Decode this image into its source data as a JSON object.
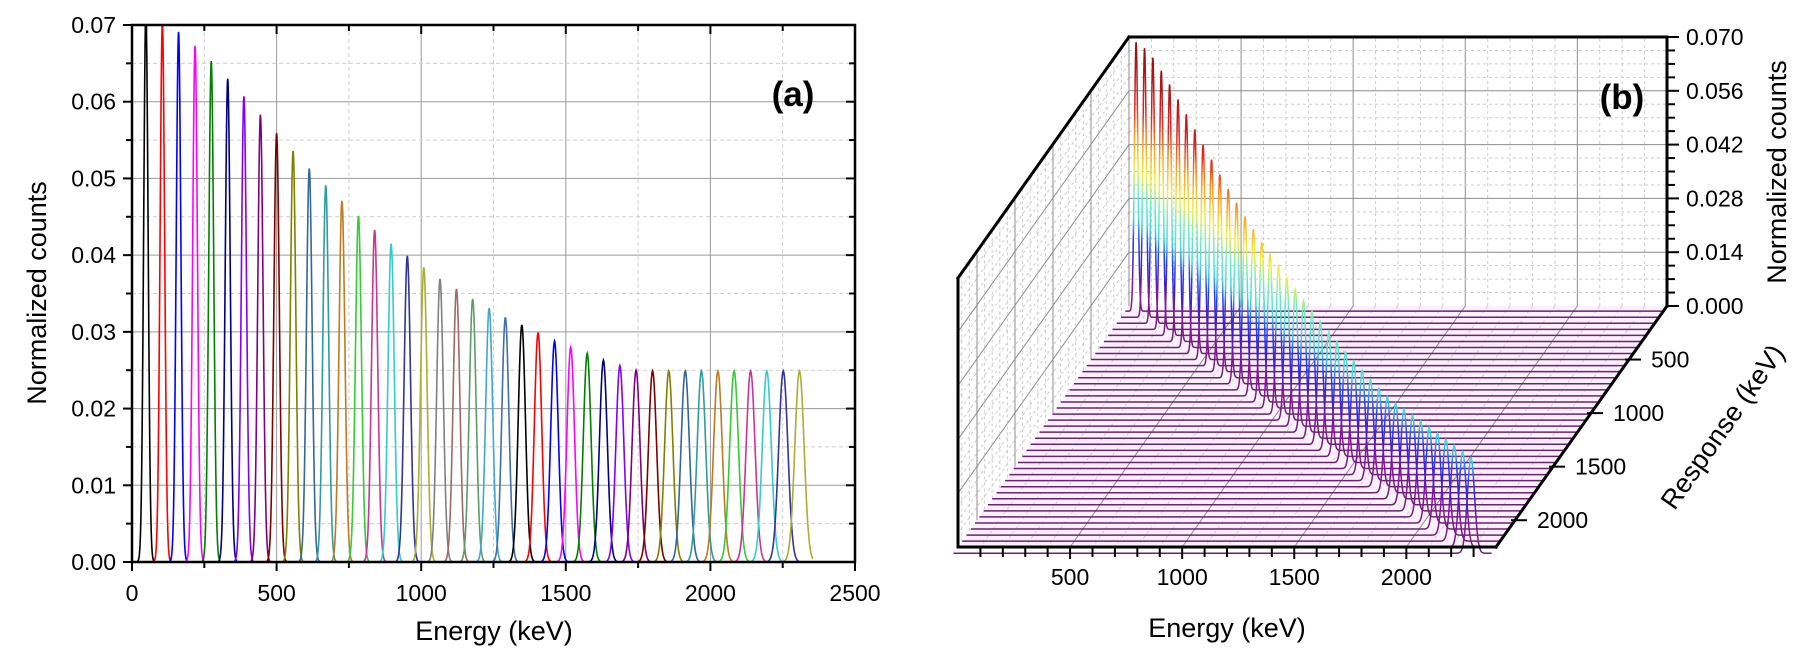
{
  "chart_data": [
    {
      "type": "line",
      "panel_label": "(a)",
      "xlabel": "Energy (keV)",
      "ylabel": "Normalized counts",
      "xlim": [
        0,
        2500
      ],
      "ylim": [
        0,
        0.07
      ],
      "x_ticks": [
        "0",
        "500",
        "1000",
        "1500",
        "2000",
        "2500"
      ],
      "y_ticks": [
        "0.00",
        "0.01",
        "0.02",
        "0.03",
        "0.04",
        "0.05",
        "0.06",
        "0.07"
      ],
      "grid": true,
      "legend": "none",
      "peak_shape": "gaussian",
      "series_colors": [
        "#000000",
        "#ff0000",
        "#0000ff",
        "#ff00ff",
        "#008000",
        "#000080",
        "#8000ff",
        "#800080",
        "#800000",
        "#808000",
        "#336699",
        "#2f9c9c",
        "#c07a20",
        "#33cc33",
        "#cc3399",
        "#33cccc",
        "#333399",
        "#a8b030",
        "#808080",
        "#a06868",
        "#5f9a6a",
        "#3fa8cc",
        "#3f6fa8"
      ],
      "peak_energies": [
        48,
        105,
        161,
        218,
        274,
        331,
        387,
        444,
        500,
        557,
        613,
        670,
        726,
        783,
        839,
        896,
        952,
        1009,
        1065,
        1122,
        1178,
        1235,
        1291,
        1348,
        1404,
        1461,
        1517,
        1574,
        1630,
        1687,
        1743,
        1800,
        1856,
        1913,
        1969,
        2026,
        2082,
        2139,
        2195,
        2252,
        2308
      ],
      "peak_heights": [
        0.072,
        0.0704,
        0.0691,
        0.0673,
        0.0653,
        0.063,
        0.0607,
        0.0583,
        0.0559,
        0.0536,
        0.0513,
        0.0491,
        0.0471,
        0.0451,
        0.0433,
        0.0415,
        0.0399,
        0.0384,
        0.0369,
        0.0356,
        0.0343,
        0.0331,
        0.0319,
        0.0309,
        0.0299,
        0.0288,
        0.028,
        0.0272,
        0.0263,
        0.0256,
        0.025,
        0.0249,
        0.0249,
        0.0249,
        0.0249,
        0.0249,
        0.0249,
        0.0249,
        0.0249,
        0.0249,
        0.0249
      ],
      "x_end": 2355
    },
    {
      "type": "waterfall-3d",
      "panel_label": "(b)",
      "xlabel": "Energy (keV)",
      "ylabel": "Response (keV)",
      "zlabel": "Normalized counts",
      "xlim": [
        0,
        2400
      ],
      "ylim": [
        0,
        2250
      ],
      "zlim": [
        0,
        0.07
      ],
      "x_ticks": [
        "500",
        "1000",
        "1500",
        "2000"
      ],
      "y_ticks": [
        "500",
        "1000",
        "1500",
        "2000"
      ],
      "z_ticks": [
        "0.000",
        "0.014",
        "0.028",
        "0.042",
        "0.056",
        "0.070"
      ],
      "grid": true,
      "floor_color": "#fcf0fc",
      "colormap": [
        {
          "z": 0.0,
          "color": "#6b2270"
        },
        {
          "z": 0.007,
          "color": "#8a10a0"
        },
        {
          "z": 0.013,
          "color": "#3a20d0"
        },
        {
          "z": 0.019,
          "color": "#2040ff"
        },
        {
          "z": 0.024,
          "color": "#40d8e0"
        },
        {
          "z": 0.031,
          "color": "#70f0c0"
        },
        {
          "z": 0.037,
          "color": "#f0f040"
        },
        {
          "z": 0.045,
          "color": "#ffa020"
        },
        {
          "z": 0.054,
          "color": "#e02020"
        },
        {
          "z": 0.07,
          "color": "#901010"
        }
      ],
      "traces_note_source": "same peaks as panel (a), one trace per response energy"
    }
  ]
}
